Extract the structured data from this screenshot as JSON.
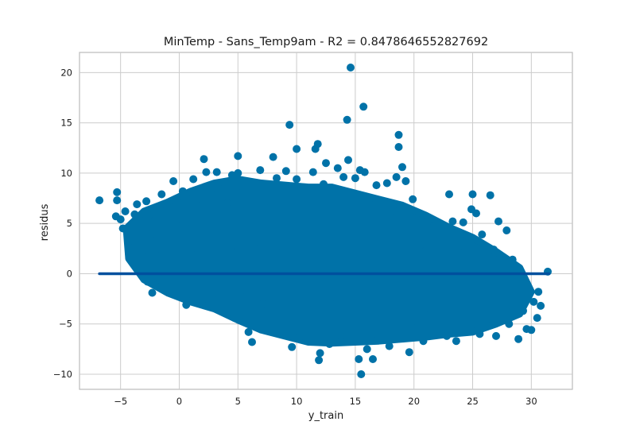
{
  "chart_data": {
    "type": "scatter",
    "title": "MinTemp - Sans_Temp9am - R2 = 0.8478646552827692",
    "xlabel": "y_train",
    "ylabel": "residus",
    "xlim": [
      -8.5,
      33.5
    ],
    "ylim": [
      -11.5,
      22
    ],
    "x_ticks": [
      -5,
      0,
      5,
      10,
      15,
      20,
      25,
      30
    ],
    "x_tick_labels": [
      "−5",
      "0",
      "5",
      "10",
      "15",
      "20",
      "25",
      "30"
    ],
    "y_ticks": [
      -10,
      -5,
      0,
      5,
      10,
      15,
      20
    ],
    "y_tick_labels": [
      "−10",
      "−5",
      "0",
      "5",
      "10",
      "15",
      "20"
    ],
    "grid": true,
    "point_color": "#0072a8",
    "line_color": "#00509e",
    "zero_line": {
      "x": [
        -6.8,
        31.5
      ],
      "y": [
        0,
        0
      ]
    },
    "series": [
      {
        "values": [
          [
            -6.8,
            7.3
          ],
          [
            -5.3,
            8.1
          ],
          [
            -5.4,
            5.7
          ],
          [
            -5.0,
            5.4
          ],
          [
            -4.8,
            4.5
          ],
          [
            -4.6,
            6.2
          ],
          [
            -5.3,
            7.3
          ],
          [
            -4.0,
            3.3
          ],
          [
            -3.8,
            5.9
          ],
          [
            -3.6,
            6.9
          ],
          [
            -3.4,
            1.0
          ],
          [
            -3.0,
            2.3
          ],
          [
            -2.8,
            7.2
          ],
          [
            -2.6,
            5.8
          ],
          [
            -2.3,
            4.0
          ],
          [
            -2.7,
            -0.8
          ],
          [
            -2.3,
            -1.9
          ],
          [
            -1.8,
            -0.4
          ],
          [
            -1.6,
            -1.3
          ],
          [
            -1.9,
            2.5
          ],
          [
            -1.5,
            7.9
          ],
          [
            -1.0,
            6.6
          ],
          [
            -0.5,
            9.2
          ],
          [
            -0.3,
            5.3
          ],
          [
            0.3,
            8.2
          ],
          [
            0.6,
            4.5
          ],
          [
            0.4,
            -1.0
          ],
          [
            0.6,
            -3.1
          ],
          [
            1.0,
            2.0
          ],
          [
            1.2,
            9.4
          ],
          [
            1.5,
            6.8
          ],
          [
            2.1,
            11.4
          ],
          [
            2.3,
            10.1
          ],
          [
            2.4,
            -3.2
          ],
          [
            2.8,
            1.5
          ],
          [
            3.0,
            8.6
          ],
          [
            3.2,
            10.1
          ],
          [
            3.4,
            -2.5
          ],
          [
            3.8,
            4.2
          ],
          [
            4.1,
            7.0
          ],
          [
            4.5,
            9.8
          ],
          [
            4.7,
            -4.4
          ],
          [
            5.0,
            10.0
          ],
          [
            4.9,
            2.8
          ],
          [
            5.0,
            11.7
          ],
          [
            5.3,
            8.7
          ],
          [
            5.4,
            -1.6
          ],
          [
            5.8,
            6.4
          ],
          [
            5.9,
            -5.8
          ],
          [
            6.2,
            -6.8
          ],
          [
            6.5,
            3.1
          ],
          [
            6.9,
            10.3
          ],
          [
            7.1,
            -3.0
          ],
          [
            7.3,
            6.6
          ],
          [
            7.8,
            -0.2
          ],
          [
            8.0,
            11.6
          ],
          [
            8.3,
            9.5
          ],
          [
            8.5,
            -5.2
          ],
          [
            8.8,
            2.2
          ],
          [
            9.1,
            10.2
          ],
          [
            9.4,
            14.8
          ],
          [
            9.6,
            -7.3
          ],
          [
            9.8,
            4.6
          ],
          [
            10.0,
            12.4
          ],
          [
            10.0,
            9.4
          ],
          [
            10.2,
            -6.4
          ],
          [
            10.5,
            1.0
          ],
          [
            10.9,
            -3.0
          ],
          [
            11.1,
            7.3
          ],
          [
            11.4,
            10.1
          ],
          [
            11.6,
            12.4
          ],
          [
            11.8,
            12.9
          ],
          [
            11.9,
            -8.6
          ],
          [
            12.0,
            -7.9
          ],
          [
            12.3,
            8.9
          ],
          [
            12.5,
            11.0
          ],
          [
            12.8,
            -7.0
          ],
          [
            13.1,
            5.2
          ],
          [
            13.2,
            -2.3
          ],
          [
            13.5,
            10.5
          ],
          [
            13.8,
            -6.2
          ],
          [
            14.0,
            9.6
          ],
          [
            14.3,
            15.3
          ],
          [
            14.4,
            11.3
          ],
          [
            14.6,
            20.5
          ],
          [
            14.8,
            -3.7
          ],
          [
            15.0,
            9.5
          ],
          [
            15.3,
            -8.5
          ],
          [
            15.4,
            10.3
          ],
          [
            15.5,
            -10.0
          ],
          [
            15.7,
            16.6
          ],
          [
            15.8,
            10.1
          ],
          [
            16.0,
            -7.5
          ],
          [
            16.3,
            4.6
          ],
          [
            16.5,
            -8.5
          ],
          [
            16.8,
            8.8
          ],
          [
            17.0,
            -6.5
          ],
          [
            17.3,
            -4.4
          ],
          [
            17.7,
            9.0
          ],
          [
            17.9,
            -7.2
          ],
          [
            18.2,
            6.3
          ],
          [
            18.5,
            9.6
          ],
          [
            18.7,
            13.8
          ],
          [
            18.7,
            12.6
          ],
          [
            19.0,
            10.6
          ],
          [
            19.3,
            9.2
          ],
          [
            19.6,
            -7.8
          ],
          [
            19.9,
            7.4
          ],
          [
            20.2,
            -4.7
          ],
          [
            20.5,
            2.8
          ],
          [
            20.8,
            -6.7
          ],
          [
            21.1,
            5.1
          ],
          [
            21.4,
            -3.5
          ],
          [
            21.8,
            3.3
          ],
          [
            22.1,
            -5.8
          ],
          [
            22.4,
            4.2
          ],
          [
            22.8,
            -6.2
          ],
          [
            23.0,
            7.9
          ],
          [
            23.3,
            5.2
          ],
          [
            23.6,
            -6.7
          ],
          [
            23.9,
            2.7
          ],
          [
            24.2,
            5.1
          ],
          [
            24.6,
            -4.5
          ],
          [
            24.9,
            6.4
          ],
          [
            25.0,
            7.9
          ],
          [
            25.3,
            6.0
          ],
          [
            25.6,
            -6.0
          ],
          [
            25.8,
            3.9
          ],
          [
            26.1,
            -4.9
          ],
          [
            26.5,
            7.8
          ],
          [
            26.8,
            2.4
          ],
          [
            27.0,
            -6.2
          ],
          [
            27.2,
            5.2
          ],
          [
            27.5,
            1.6
          ],
          [
            27.9,
            4.3
          ],
          [
            28.1,
            -5.0
          ],
          [
            28.4,
            1.4
          ],
          [
            28.7,
            0.7
          ],
          [
            28.9,
            -6.5
          ],
          [
            29.0,
            0.4
          ],
          [
            29.3,
            -3.7
          ],
          [
            29.6,
            -5.5
          ],
          [
            29.8,
            -2.0
          ],
          [
            30.0,
            -5.6
          ],
          [
            30.2,
            -2.8
          ],
          [
            30.5,
            -4.4
          ],
          [
            30.6,
            -1.8
          ],
          [
            30.8,
            -3.2
          ],
          [
            31.4,
            0.2
          ],
          [
            29.2,
            -2.5
          ],
          [
            28.3,
            -3.8
          ]
        ]
      }
    ]
  }
}
